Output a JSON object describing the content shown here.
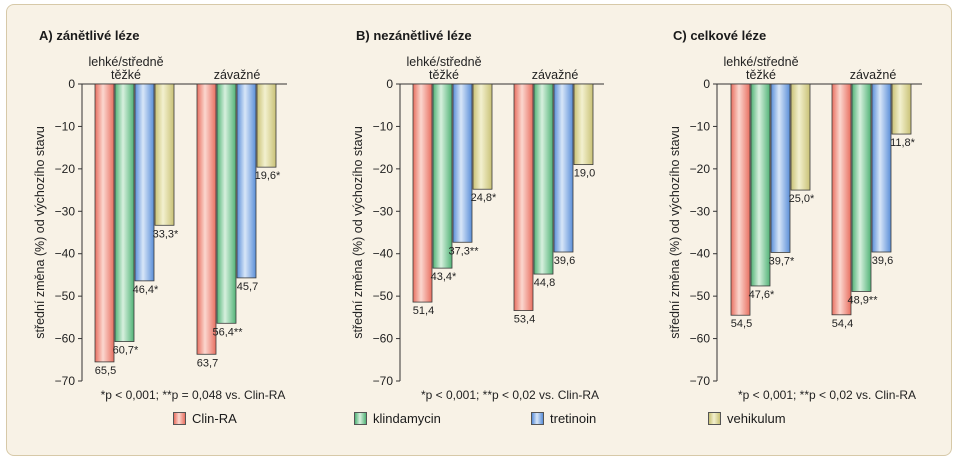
{
  "chart_data": [
    {
      "type": "bar",
      "title": "A) zánětlivé léze",
      "ylabel": "střední změna (%) od výchozího stavu",
      "ylim": [
        -70,
        0
      ],
      "yticks": [
        0,
        -10,
        -20,
        -30,
        -40,
        -50,
        -60,
        -70
      ],
      "groups": [
        "lehké/středně těžké",
        "závažné"
      ],
      "series": [
        {
          "name": "Clin-RA",
          "values": [
            -65.5,
            -63.7
          ],
          "labels": [
            "65,5",
            "63,7"
          ]
        },
        {
          "name": "klindamycin",
          "values": [
            -60.7,
            -56.4
          ],
          "labels": [
            "60,7*",
            "56,4**"
          ]
        },
        {
          "name": "tretinoin",
          "values": [
            -46.4,
            -45.7
          ],
          "labels": [
            "46,4*",
            "45,7"
          ]
        },
        {
          "name": "vehikulum",
          "values": [
            -33.3,
            -19.6
          ],
          "labels": [
            "33,3*",
            "19,6*"
          ]
        }
      ],
      "footnote": "*p < 0,001; **p = 0,048 vs. Clin-RA"
    },
    {
      "type": "bar",
      "title": "B) nezánětlivé léze",
      "ylabel": "střední změna (%) od výchozího stavu",
      "ylim": [
        -70,
        0
      ],
      "yticks": [
        0,
        -10,
        -20,
        -30,
        -40,
        -50,
        -60,
        -70
      ],
      "groups": [
        "lehké/středně těžké",
        "závažné"
      ],
      "series": [
        {
          "name": "Clin-RA",
          "values": [
            -51.4,
            -53.4
          ],
          "labels": [
            "51,4",
            "53,4"
          ]
        },
        {
          "name": "klindamycin",
          "values": [
            -43.4,
            -44.8
          ],
          "labels": [
            "43,4*",
            "44,8"
          ]
        },
        {
          "name": "tretinoin",
          "values": [
            -37.3,
            -39.6
          ],
          "labels": [
            "37,3**",
            "39,6"
          ]
        },
        {
          "name": "vehikulum",
          "values": [
            -24.8,
            -19.0
          ],
          "labels": [
            "24,8*",
            "19,0"
          ]
        }
      ],
      "footnote": "*p < 0,001; **p < 0,02 vs. Clin-RA"
    },
    {
      "type": "bar",
      "title": "C) celkové léze",
      "ylabel": "střední změna (%) od výchozího stavu",
      "ylim": [
        -70,
        0
      ],
      "yticks": [
        0,
        -10,
        -20,
        -30,
        -40,
        -50,
        -60,
        -70
      ],
      "groups": [
        "lehké/středně těžké",
        "závažné"
      ],
      "series": [
        {
          "name": "Clin-RA",
          "values": [
            -54.5,
            -54.4
          ],
          "labels": [
            "54,5",
            "54,4"
          ]
        },
        {
          "name": "klindamycin",
          "values": [
            -47.6,
            -48.9
          ],
          "labels": [
            "47,6*",
            "48,9**"
          ]
        },
        {
          "name": "tretinoin",
          "values": [
            -39.7,
            -39.6
          ],
          "labels": [
            "39,7*",
            "39,6"
          ]
        },
        {
          "name": "vehikulum",
          "values": [
            -25.0,
            -11.8
          ],
          "labels": [
            "25,0*",
            "11,8*"
          ]
        }
      ],
      "footnote": "*p < 0,001; **p < 0,02 vs. Clin-RA"
    }
  ],
  "legend": [
    {
      "name": "Clin-RA",
      "color": "#ee8a7a"
    },
    {
      "name": "klindamycin",
      "color": "#7fc79a"
    },
    {
      "name": "tretinoin",
      "color": "#7ea6dd"
    },
    {
      "name": "vehikulum",
      "color": "#d6d08e"
    }
  ],
  "colors": {
    "Clin-RA": {
      "base": "#e86f60",
      "light": "#fbd7cf"
    },
    "klindamycin": {
      "base": "#52b377",
      "light": "#d7f0de"
    },
    "tretinoin": {
      "base": "#5a8ed8",
      "light": "#d8e6f8"
    },
    "vehikulum": {
      "base": "#c9c276",
      "light": "#f3f0cf"
    }
  }
}
